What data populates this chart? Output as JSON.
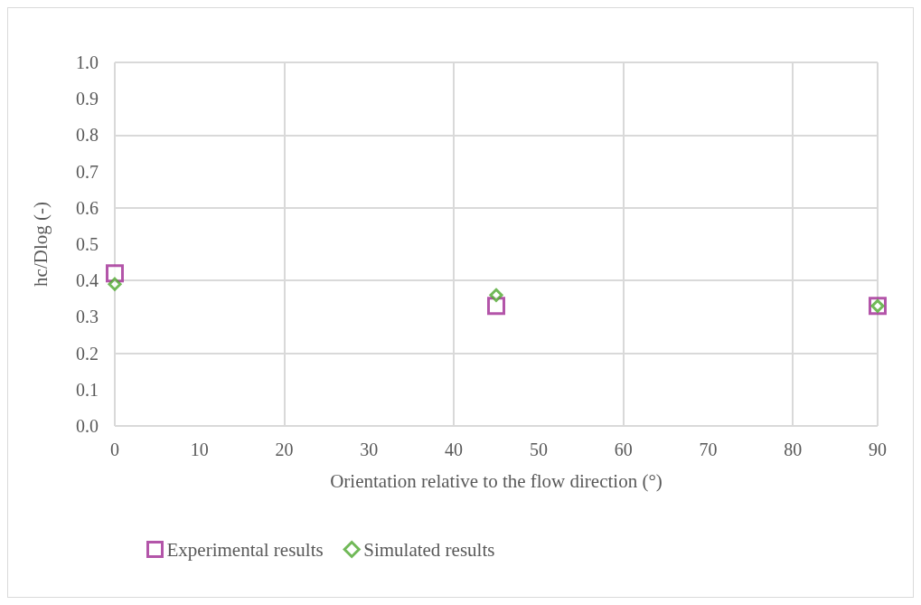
{
  "chart_data": {
    "type": "scatter",
    "xlabel": "Orientation relative to the flow direction (°)",
    "ylabel": "hc/Dlog (-)",
    "series": [
      {
        "name": "Experimental results",
        "color": "#a02b93",
        "marker": "square",
        "x": [
          0,
          45,
          90
        ],
        "values": [
          0.42,
          0.33,
          0.33
        ]
      },
      {
        "name": "Simulated results",
        "color": "#4ea72e",
        "marker": "diamond",
        "x": [
          0,
          45,
          90
        ],
        "values": [
          0.39,
          0.36,
          0.33
        ]
      }
    ],
    "xlim": [
      0,
      90
    ],
    "xticks": [
      0,
      10,
      20,
      30,
      40,
      50,
      60,
      70,
      80,
      90
    ],
    "ylim": [
      0,
      1
    ],
    "yticks": [
      {
        "value": 0,
        "label": "0.0"
      },
      {
        "value": 0.1,
        "label": "0.1"
      },
      {
        "value": 0.2,
        "label": "0.2"
      },
      {
        "value": 0.3,
        "label": "0.3"
      },
      {
        "value": 0.4,
        "label": "0.4"
      },
      {
        "value": 0.5,
        "label": "0.5"
      },
      {
        "value": 0.6,
        "label": "0.6"
      },
      {
        "value": 0.7,
        "label": "0.7"
      },
      {
        "value": 0.8,
        "label": "0.8"
      },
      {
        "value": 0.9,
        "label": "0.9"
      },
      {
        "value": 1,
        "label": "1.0"
      }
    ],
    "grid": true,
    "legend": "bottom left"
  }
}
